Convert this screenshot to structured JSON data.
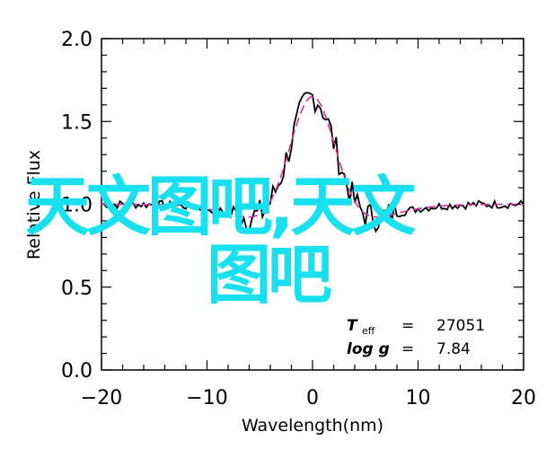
{
  "chart_data": {
    "type": "line",
    "xlabel": "Wavelength(nm)",
    "ylabel": "Relative Flux",
    "xlim": [
      -20,
      20
    ],
    "ylim": [
      0.0,
      2.0
    ],
    "x_ticks": [
      "−20",
      "−10",
      "0",
      "10",
      "20"
    ],
    "y_ticks": [
      "0.0",
      "0.5",
      "1.0",
      "1.5",
      "2.0"
    ],
    "grid": false,
    "profile_params": {
      "center": 0,
      "peak_height": 0.85,
      "peak_width": 2.2,
      "dip_depth": 0.2,
      "dip_width": 2.5
    },
    "series": [
      {
        "style": "solid",
        "color": "#000000",
        "x": [
          -20,
          -19,
          -18,
          -17,
          -16,
          -15,
          -14,
          -13,
          -12,
          -11,
          -10,
          -9,
          -8,
          -7,
          -6,
          -5,
          -4,
          -3,
          -2,
          -1,
          0,
          1,
          2,
          3,
          4,
          5,
          6,
          7,
          8,
          9,
          10,
          11,
          12,
          13,
          14,
          15,
          16,
          17,
          18,
          19,
          20
        ]
      },
      {
        "style": "dashed",
        "color": "#cc3399",
        "x": [
          -20,
          -19,
          -18,
          -17,
          -16,
          -15,
          -14,
          -13,
          -12,
          -11,
          -10,
          -9,
          -8,
          -7,
          -6,
          -5,
          -4,
          -3,
          -2,
          -1,
          0,
          1,
          2,
          3,
          4,
          5,
          6,
          7,
          8,
          9,
          10,
          11,
          12,
          13,
          14,
          15,
          16,
          17,
          18,
          19,
          20
        ]
      }
    ],
    "annotation": {
      "line1_symbol": "T",
      "line1_sub": "eff",
      "line1_eq": "=",
      "line1_value": "27051",
      "line2_symbol": "log g",
      "line2_eq": "=",
      "line2_value": "7.84"
    }
  },
  "watermark": {
    "line1": "天文图吧,天文",
    "line2": "图吧"
  }
}
